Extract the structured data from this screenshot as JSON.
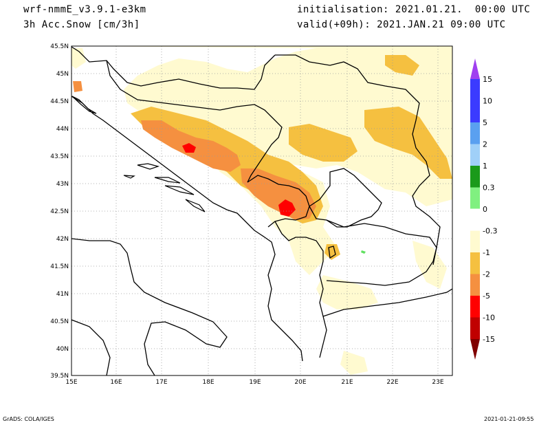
{
  "header": {
    "model": "wrf-nmmE_v3.9.1-e3km",
    "variable": "3h Acc.Snow [cm/3h]",
    "init": "initialisation: 2021.01.21.  00:00 UTC",
    "valid": "valid(+09h): 2021.JAN.21 09:00 UTC"
  },
  "axes": {
    "lon_labels": [
      "15E",
      "16E",
      "17E",
      "18E",
      "19E",
      "20E",
      "21E",
      "22E",
      "23E"
    ],
    "lat_labels": [
      "45.5N",
      "45N",
      "44.5N",
      "44N",
      "43.5N",
      "43N",
      "42.5N",
      "42N",
      "41.5N",
      "41N",
      "40.5N",
      "40N",
      "39.5N"
    ]
  },
  "colorbar": {
    "labels": [
      "15",
      "10",
      "5",
      "2",
      "1",
      "0.3",
      "0",
      "-0.3",
      "-1",
      "-2",
      "-5",
      "-10",
      "-15"
    ],
    "colors": [
      "#8a2be2",
      "#3b3bff",
      "#5aa0f0",
      "#a0d0f8",
      "#1a9a1a",
      "#80f080",
      "#ffffff",
      "#fffad0",
      "#f5c040",
      "#f59040",
      "#ff0000",
      "#c00000",
      "#900000"
    ],
    "top_arrow_color": "#a040f0",
    "bottom_arrow_color": "#800000"
  },
  "footer": {
    "left": "GrADS: COLA/IGES",
    "right": "2021-01-21-09:55"
  },
  "palette": {
    "light": "#fffad0",
    "yellow": "#f5c040",
    "orange": "#f59040",
    "red": "#ff0000",
    "green": "#60e060"
  }
}
